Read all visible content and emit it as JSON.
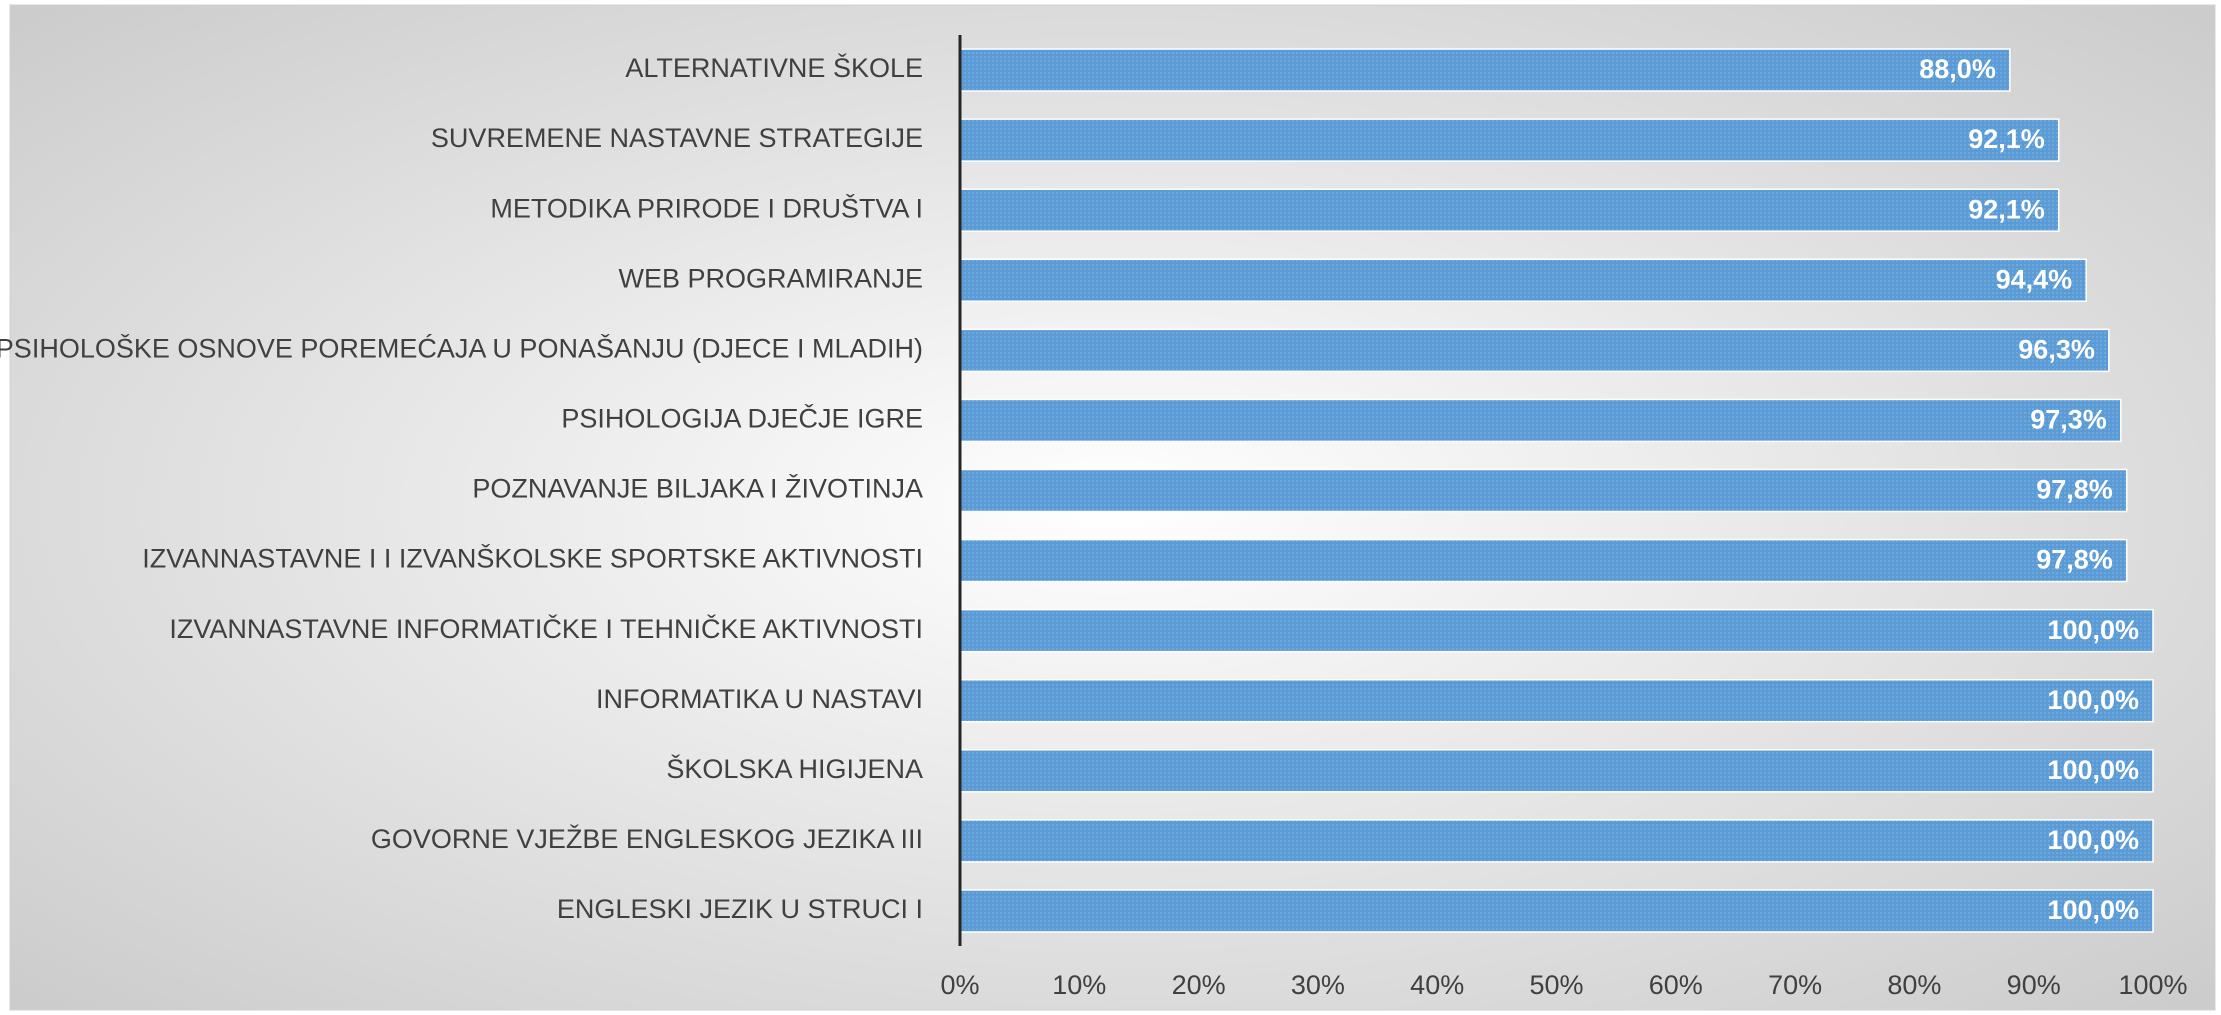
{
  "chart_data": {
    "type": "barh",
    "categories": [
      "ALTERNATIVNE ŠKOLE",
      "SUVREMENE NASTAVNE STRATEGIJE",
      "METODIKA PRIRODE I DRUŠTVA I",
      "WEB PROGRAMIRANJE",
      "PSIHOLOŠKE OSNOVE POREMEĆAJA U PONAŠANJU (DJECE I MLADIH)",
      "PSIHOLOGIJA DJEČJE IGRE",
      "POZNAVANJE BILJAKA I ŽIVOTINJA",
      "IZVANNASTAVNE I I IZVANŠKOLSKE SPORTSKE AKTIVNOSTI",
      "IZVANNASTAVNE INFORMATIČKE I TEHNIČKE AKTIVNOSTI",
      "INFORMATIKA U NASTAVI",
      "ŠKOLSKA HIGIJENA",
      "GOVORNE VJEŽBE ENGLESKOG JEZIKA III",
      "ENGLESKI JEZIK U STRUCI I"
    ],
    "values": [
      88.0,
      92.1,
      92.1,
      94.4,
      96.3,
      97.3,
      97.8,
      97.8,
      100,
      100,
      100,
      100,
      100
    ],
    "value_labels": [
      "88,0%",
      "92,1%",
      "92,1%",
      "94,4%",
      "96,3%",
      "97,3%",
      "97,8%",
      "97,8%",
      "100,0%",
      "100,0%",
      "100,0%",
      "100,0%",
      "100,0%"
    ],
    "color": "#5b9bd5",
    "xlim": [
      0,
      100
    ],
    "xticks": [
      {
        "value": 0,
        "label": "0%"
      },
      {
        "value": 10,
        "label": "10%"
      },
      {
        "value": 20,
        "label": "20%"
      },
      {
        "value": 30,
        "label": "30%"
      },
      {
        "value": 40,
        "label": "40%"
      },
      {
        "value": 50,
        "label": "50%"
      },
      {
        "value": 60,
        "label": "60%"
      },
      {
        "value": 70,
        "label": "70%"
      },
      {
        "value": 80,
        "label": "80%"
      },
      {
        "value": 90,
        "label": "90%"
      },
      {
        "value": 100,
        "label": "100%"
      }
    ]
  }
}
